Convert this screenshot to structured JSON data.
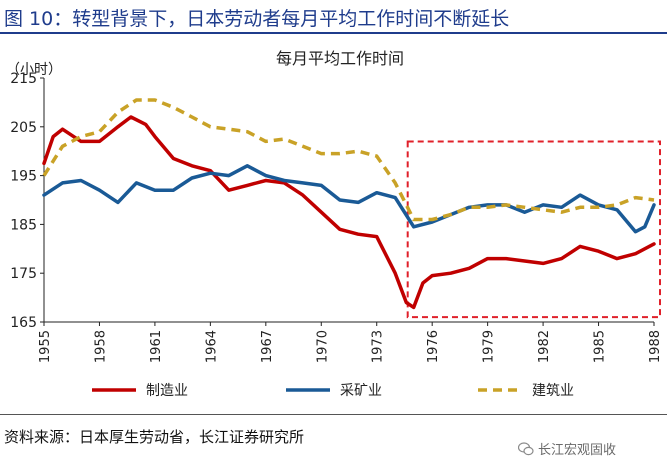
{
  "header": {
    "title": "图 10：转型背景下，日本劳动者每月平均工作时间不断延长"
  },
  "footer": {
    "source": "资料来源：日本厚生劳动省，长江证券研究所",
    "watermark": "长江宏观固收"
  },
  "colors": {
    "header_blue": "#1f3c8c",
    "highlight_box": "#e0202a"
  },
  "chart_data": {
    "type": "line",
    "title": "每月平均工作时间",
    "ylabel": "（小时）",
    "xlabel": "",
    "ylim": [
      165,
      215
    ],
    "yticks": [
      165,
      175,
      185,
      195,
      205,
      215
    ],
    "xlim": [
      1955,
      1988
    ],
    "xticks": [
      1955,
      1958,
      1961,
      1964,
      1967,
      1970,
      1973,
      1976,
      1979,
      1982,
      1985,
      1988
    ],
    "legend_position": "bottom",
    "grid": false,
    "highlight_range": {
      "x": [
        1975,
        1988
      ],
      "y": [
        166,
        202
      ],
      "style": "red dashed box"
    },
    "series": [
      {
        "name": "制造业",
        "color": "#c00000",
        "dash": "solid",
        "x": [
          1955,
          1955.5,
          1956,
          1957,
          1958,
          1959,
          1959.7,
          1960.5,
          1961,
          1962,
          1963,
          1964,
          1965,
          1966,
          1967,
          1968,
          1969,
          1970,
          1971,
          1972,
          1973,
          1974,
          1974.6,
          1975,
          1975.5,
          1976,
          1977,
          1978,
          1979,
          1980,
          1981,
          1982,
          1983,
          1984,
          1985,
          1986,
          1987,
          1988
        ],
        "values": [
          197.5,
          203,
          204.5,
          202,
          202,
          205,
          207,
          205.5,
          203,
          198.5,
          197,
          196,
          192,
          193,
          194,
          193.5,
          191,
          187.5,
          184,
          183,
          182.5,
          175,
          169,
          168,
          173,
          174.5,
          175,
          176,
          178,
          178,
          177.5,
          177,
          178,
          180.5,
          179.5,
          178,
          179,
          181
        ]
      },
      {
        "name": "采矿业",
        "color": "#1a5a96",
        "dash": "solid",
        "x": [
          1955,
          1956,
          1957,
          1958,
          1959,
          1960,
          1961,
          1962,
          1963,
          1964,
          1965,
          1966,
          1967,
          1968,
          1969,
          1970,
          1971,
          1972,
          1973,
          1974,
          1975,
          1976,
          1977,
          1978,
          1979,
          1980,
          1981,
          1982,
          1983,
          1984,
          1985,
          1986,
          1987,
          1987.5,
          1988
        ],
        "values": [
          191,
          193.5,
          194,
          192,
          189.5,
          193.5,
          192,
          192,
          194.5,
          195.5,
          195,
          197,
          195,
          194,
          193.5,
          193,
          190,
          189.5,
          191.5,
          190.5,
          184.5,
          185.5,
          187,
          188.5,
          189,
          189,
          187.5,
          189,
          188.5,
          191,
          189,
          188,
          183.5,
          184.5,
          189
        ]
      },
      {
        "name": "建筑业",
        "color": "#c9a227",
        "dash": "dashed",
        "x": [
          1955,
          1956,
          1957,
          1958,
          1959,
          1960,
          1961,
          1962,
          1963,
          1964,
          1965,
          1966,
          1967,
          1968,
          1969,
          1970,
          1971,
          1972,
          1973,
          1974,
          1975,
          1976,
          1977,
          1978,
          1979,
          1980,
          1981,
          1982,
          1983,
          1984,
          1985,
          1986,
          1987,
          1988
        ],
        "values": [
          195,
          201,
          203,
          204,
          208,
          210.5,
          210.5,
          209,
          207,
          205,
          204.5,
          204,
          202,
          202.5,
          201,
          199.5,
          199.5,
          200,
          199,
          193.5,
          186,
          186,
          187,
          188.5,
          188.5,
          189,
          188.5,
          188,
          187.5,
          188.5,
          188.5,
          189,
          190.5,
          190
        ]
      }
    ]
  }
}
